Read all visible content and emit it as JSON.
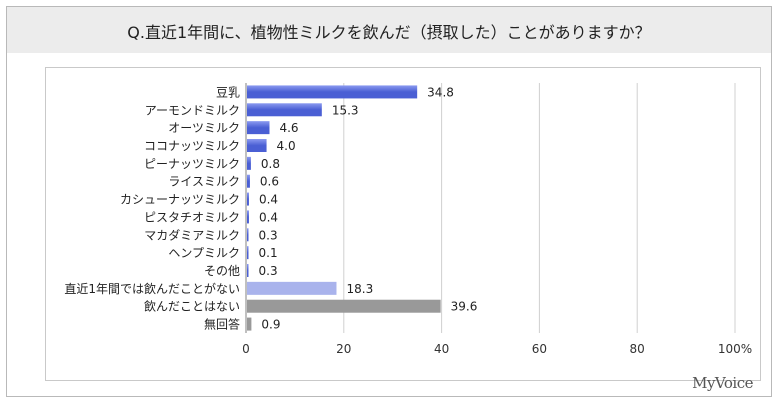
{
  "title": "Q.直近1年間に、植物性ミルクを飲んだ（摂取した）ことがありますか？",
  "brand": "MyVoice",
  "colors": {
    "milk_bar": "#4a5fd4",
    "milk_bar_light": "#8b9af0",
    "not_recent_bar": "#a9b3ec",
    "never_bar": "#999999",
    "no_answer_bar": "#999999",
    "grid": "#d0d0d0",
    "axis": "#808080"
  },
  "chart_data": {
    "type": "bar",
    "orientation": "horizontal",
    "categories": [
      "豆乳",
      "アーモンドミルク",
      "オーツミルク",
      "ココナッツミルク",
      "ピーナッツミルク",
      "ライスミルク",
      "カシューナッツミルク",
      "ピスタチオミルク",
      "マカダミアミルク",
      "ヘンプミルク",
      "その他",
      "直近1年間では飲んだことがない",
      "飲んだことはない",
      "無回答"
    ],
    "values": [
      34.8,
      15.3,
      4.6,
      4.0,
      0.8,
      0.6,
      0.4,
      0.4,
      0.3,
      0.1,
      0.3,
      18.3,
      39.6,
      0.9
    ],
    "value_labels": [
      "34.8",
      "15.3",
      "4.6",
      "4.0",
      "0.8",
      "0.6",
      "0.4",
      "0.4",
      "0.3",
      "0.1",
      "0.3",
      "18.3",
      "39.6",
      "0.9"
    ],
    "bar_color_groups": [
      "milk",
      "milk",
      "milk",
      "milk",
      "milk",
      "milk",
      "milk",
      "milk",
      "milk",
      "milk",
      "milk",
      "not_recent",
      "never",
      "no_answer"
    ],
    "xlim": [
      0,
      100
    ],
    "xticks": [
      0,
      20,
      40,
      60,
      80,
      100
    ],
    "xtick_labels": [
      "0",
      "20",
      "40",
      "60",
      "80",
      "100%"
    ],
    "grid": true,
    "legend": "none"
  }
}
